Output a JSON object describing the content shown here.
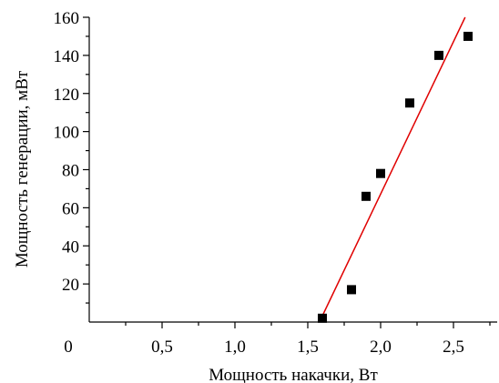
{
  "chart_data": {
    "type": "scatter",
    "xlabel": "Мощность накачки, Вт",
    "ylabel": "Мощность генерации, мВт",
    "xlim": [
      0,
      2.8
    ],
    "ylim": [
      0,
      160
    ],
    "x_ticks": [
      {
        "value": 0.5,
        "label": "0,5"
      },
      {
        "value": 1.0,
        "label": "1,0"
      },
      {
        "value": 1.5,
        "label": "1,5"
      },
      {
        "value": 2.0,
        "label": "2,0"
      },
      {
        "value": 2.5,
        "label": "2,5"
      }
    ],
    "origin_label": "0",
    "y_ticks": [
      {
        "value": 20,
        "label": "20"
      },
      {
        "value": 40,
        "label": "40"
      },
      {
        "value": 60,
        "label": "60"
      },
      {
        "value": 80,
        "label": "80"
      },
      {
        "value": 100,
        "label": "100"
      },
      {
        "value": 120,
        "label": "120"
      },
      {
        "value": 140,
        "label": "140"
      },
      {
        "value": 160,
        "label": "160"
      }
    ],
    "grid": false,
    "series": [
      {
        "type": "scatter",
        "marker": "square",
        "color": "#000000",
        "points": [
          {
            "x": 1.6,
            "y": 2
          },
          {
            "x": 1.8,
            "y": 17
          },
          {
            "x": 1.9,
            "y": 66
          },
          {
            "x": 2.0,
            "y": 78
          },
          {
            "x": 2.2,
            "y": 115
          },
          {
            "x": 2.4,
            "y": 140
          },
          {
            "x": 2.6,
            "y": 150
          }
        ]
      },
      {
        "type": "line",
        "color": "#e00000",
        "points": [
          {
            "x": 1.58,
            "y": 0
          },
          {
            "x": 2.58,
            "y": 160
          }
        ]
      }
    ]
  }
}
